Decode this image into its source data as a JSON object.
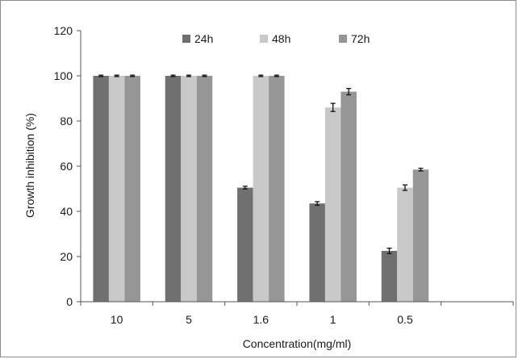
{
  "chart_data": {
    "type": "bar",
    "title": "",
    "xlabel": "Concentration(mg/ml)",
    "ylabel": "Growth inhibition (%)",
    "ylim": [
      0,
      120
    ],
    "yticks": [
      0,
      20,
      40,
      60,
      80,
      100,
      120
    ],
    "categories": [
      "10",
      "5",
      "1.6",
      "1",
      "0.5"
    ],
    "series": [
      {
        "name": "24h",
        "color": "#707070",
        "values": [
          100,
          100,
          50.5,
          43.5,
          22.5
        ],
        "errors": [
          0.3,
          0.3,
          0.6,
          0.8,
          1.2
        ]
      },
      {
        "name": "48h",
        "color": "#c9c9c9",
        "values": [
          100,
          100,
          100,
          86,
          50.5
        ],
        "errors": [
          0.3,
          0.3,
          0.3,
          1.8,
          1.2
        ]
      },
      {
        "name": "72h",
        "color": "#969696",
        "values": [
          100,
          100,
          100,
          93,
          58.5
        ],
        "errors": [
          0.3,
          0.3,
          0.3,
          1.4,
          0.6
        ]
      }
    ],
    "legend_position": "top",
    "grid": false
  }
}
